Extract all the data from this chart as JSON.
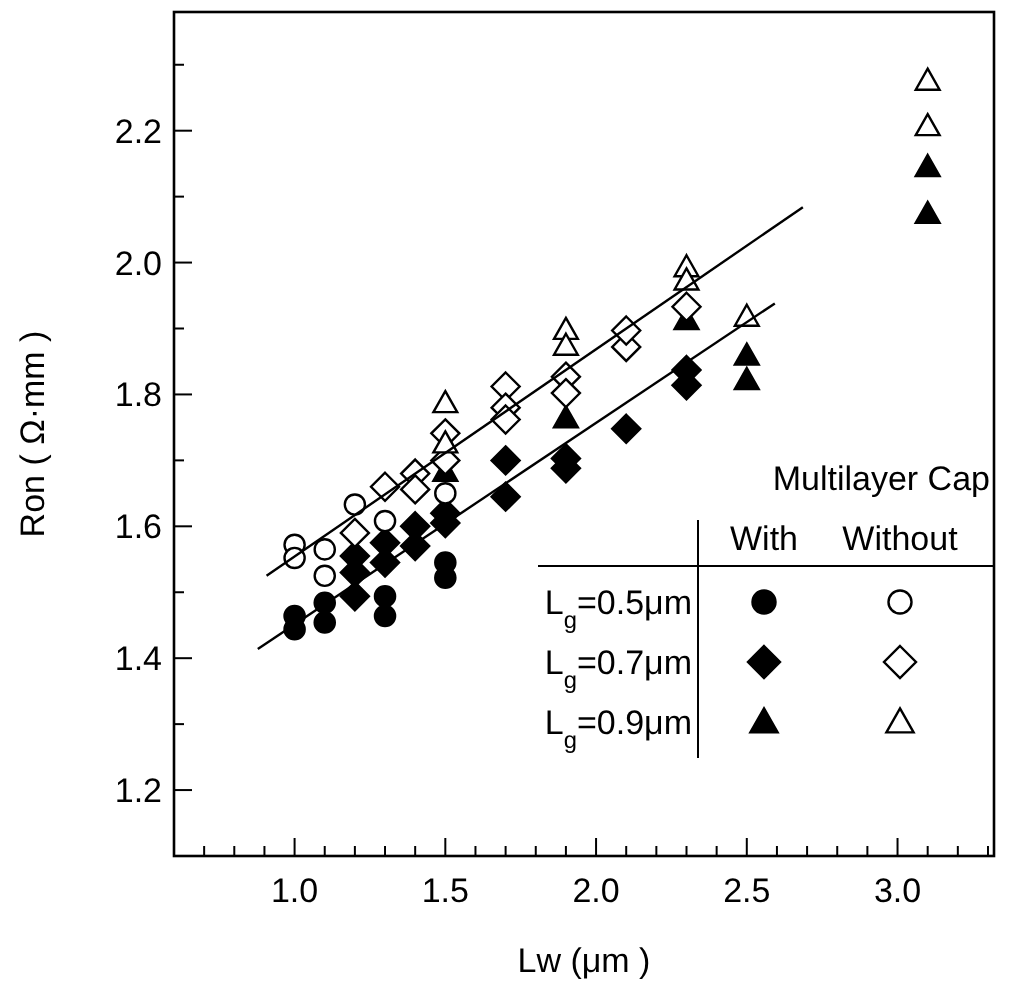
{
  "chart_data": {
    "type": "scatter",
    "xlabel": "Lw (μm )",
    "ylabel": "Ron ( Ω·mm )",
    "legend_title": "Multilayer Cap",
    "annotations": [
      "With",
      "Without"
    ],
    "legend": "bottom right",
    "xlim": [
      0.6,
      3.32
    ],
    "ylim": [
      1.1,
      2.38
    ],
    "xticks": [
      {
        "value": 0.7,
        "label": null
      },
      {
        "value": 0.8,
        "label": null
      },
      {
        "value": 0.9,
        "label": null
      },
      {
        "value": 1,
        "label": "1.0"
      },
      {
        "value": 1.1,
        "label": null
      },
      {
        "value": 1.2,
        "label": null
      },
      {
        "value": 1.3,
        "label": null
      },
      {
        "value": 1.4,
        "label": null
      },
      {
        "value": 1.5,
        "label": "1.5"
      },
      {
        "value": 1.6,
        "label": null
      },
      {
        "value": 1.7,
        "label": null
      },
      {
        "value": 1.8,
        "label": null
      },
      {
        "value": 1.9,
        "label": null
      },
      {
        "value": 2,
        "label": "2.0"
      },
      {
        "value": 2.1,
        "label": null
      },
      {
        "value": 2.2,
        "label": null
      },
      {
        "value": 2.3,
        "label": null
      },
      {
        "value": 2.4,
        "label": null
      },
      {
        "value": 2.5,
        "label": "2.5"
      },
      {
        "value": 2.6,
        "label": null
      },
      {
        "value": 2.7,
        "label": null
      },
      {
        "value": 2.8,
        "label": null
      },
      {
        "value": 2.9,
        "label": null
      },
      {
        "value": 3,
        "label": "3.0"
      },
      {
        "value": 3.1,
        "label": null
      },
      {
        "value": 3.2,
        "label": null
      },
      {
        "value": 3.3,
        "label": null
      }
    ],
    "yticks": [
      {
        "value": 1.2,
        "label": "1.2"
      },
      {
        "value": 1.3,
        "label": null
      },
      {
        "value": 1.4,
        "label": "1.4"
      },
      {
        "value": 1.5,
        "label": null
      },
      {
        "value": 1.6,
        "label": "1.6"
      },
      {
        "value": 1.7,
        "label": null
      },
      {
        "value": 1.8,
        "label": "1.8"
      },
      {
        "value": 1.9,
        "label": null
      },
      {
        "value": 2,
        "label": "2.0"
      },
      {
        "value": 2.1,
        "label": null
      },
      {
        "value": 2.2,
        "label": "2.2"
      },
      {
        "value": 2.3,
        "label": null
      }
    ],
    "series": [
      {
        "name": "L$_{g}$=0.5μm",
        "color": "#000000",
        "marker": "circle",
        "x": [
          1,
          1,
          1.1,
          1.1,
          1.3,
          1.3,
          1.5,
          1.5
        ],
        "values": [
          1.444,
          1.464,
          1.454,
          1.484,
          1.464,
          1.494,
          1.522,
          1.545
        ]
      },
      {
        "name": "L$_{g}$=0.7μm",
        "color": "#000000",
        "marker": "diamond",
        "x": [
          1.2,
          1.2,
          1.2,
          1.3,
          1.3,
          1.4,
          1.4,
          1.5,
          1.5,
          1.7,
          1.7,
          1.9,
          1.9,
          2.1,
          2.3,
          2.3
        ],
        "values": [
          1.494,
          1.53,
          1.555,
          1.545,
          1.575,
          1.57,
          1.6,
          1.605,
          1.62,
          1.645,
          1.7,
          1.688,
          1.703,
          1.748,
          1.814,
          1.837
        ]
      },
      {
        "name": "L$_{g}$=0.9μm",
        "color": "#000000",
        "marker": "triangle",
        "x": [
          1.5,
          1.9,
          2.3,
          2.5,
          2.5,
          3.1,
          3.1
        ],
        "values": [
          1.683,
          1.764,
          1.913,
          1.859,
          1.822,
          2.145,
          2.074
        ]
      },
      {
        "color": "#ffffff",
        "marker": "circle",
        "x": [
          1,
          1,
          1.1,
          1.1,
          1.2,
          1.3,
          1.5
        ],
        "values": [
          1.572,
          1.552,
          1.565,
          1.525,
          1.633,
          1.608,
          1.65
        ]
      },
      {
        "color": "#ffffff",
        "marker": "diamond",
        "x": [
          1.2,
          1.3,
          1.4,
          1.4,
          1.5,
          1.5,
          1.7,
          1.7,
          1.7,
          1.9,
          1.9,
          2.1,
          2.1,
          2.3
        ],
        "values": [
          1.59,
          1.66,
          1.68,
          1.656,
          1.7,
          1.741,
          1.812,
          1.78,
          1.762,
          1.827,
          1.802,
          1.872,
          1.897,
          1.933
        ]
      },
      {
        "color": "#ffffff",
        "marker": "triangle",
        "x": [
          1.5,
          1.5,
          1.9,
          1.9,
          2.3,
          2.3,
          2.5,
          3.1,
          3.1
        ],
        "values": [
          1.787,
          1.726,
          1.898,
          1.874,
          1.993,
          1.973,
          1.918,
          2.276,
          2.207
        ]
      },
      {
        "type": "line",
        "color": "#000000",
        "marker": "none",
        "x": [
          0.907,
          2.686
        ],
        "values": [
          1.525,
          2.084
        ]
      },
      {
        "type": "line",
        "color": "#000000",
        "marker": "none",
        "x": [
          0.878,
          2.593
        ],
        "values": [
          1.414,
          1.938
        ]
      }
    ]
  }
}
